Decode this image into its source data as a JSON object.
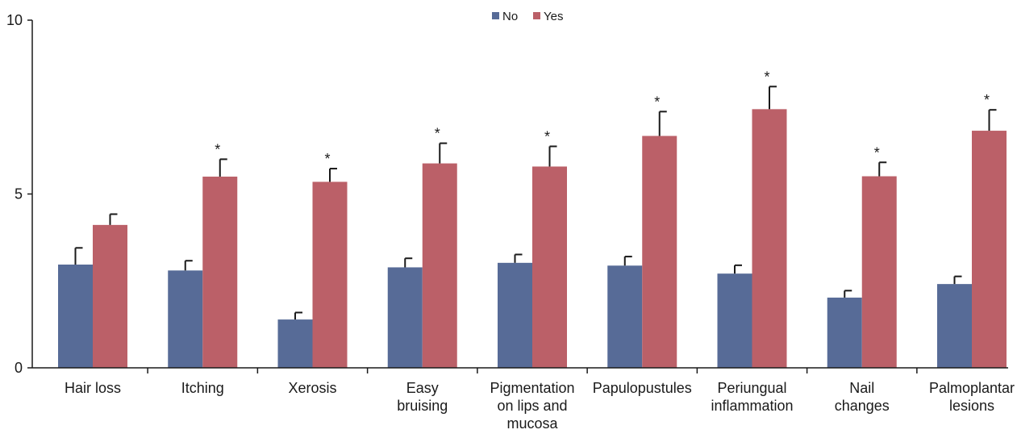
{
  "chart_data": {
    "type": "bar",
    "categories": [
      [
        "Hair loss"
      ],
      [
        "Itching"
      ],
      [
        "Xerosis"
      ],
      [
        "Easy",
        "bruising"
      ],
      [
        "Pigmentation",
        "on lips and",
        "mucosa"
      ],
      [
        "Papulopustules"
      ],
      [
        "Periungual",
        "inflammation"
      ],
      [
        "Nail",
        "changes"
      ],
      [
        "Palmoplantar",
        "lesions"
      ]
    ],
    "series": [
      {
        "name": "No",
        "color": "#576b97",
        "values": [
          2.97,
          2.8,
          1.39,
          2.89,
          3.02,
          2.94,
          2.71,
          2.02,
          2.41
        ],
        "errors": [
          0.48,
          0.28,
          0.2,
          0.26,
          0.24,
          0.26,
          0.24,
          0.2,
          0.22
        ]
      },
      {
        "name": "Yes",
        "color": "#bb6068",
        "values": [
          4.11,
          5.5,
          5.35,
          5.88,
          5.79,
          6.67,
          7.44,
          5.51,
          6.82
        ],
        "errors": [
          0.31,
          0.5,
          0.38,
          0.58,
          0.58,
          0.7,
          0.65,
          0.4,
          0.6
        ]
      }
    ],
    "significance": [
      false,
      true,
      true,
      true,
      true,
      true,
      true,
      true,
      true
    ],
    "significance_marker": "*",
    "ylim": [
      0,
      10
    ],
    "yticks": [
      0,
      5,
      10
    ],
    "title": "",
    "xlabel": "",
    "ylabel": "",
    "legend_position": "top-center",
    "grid": false
  }
}
